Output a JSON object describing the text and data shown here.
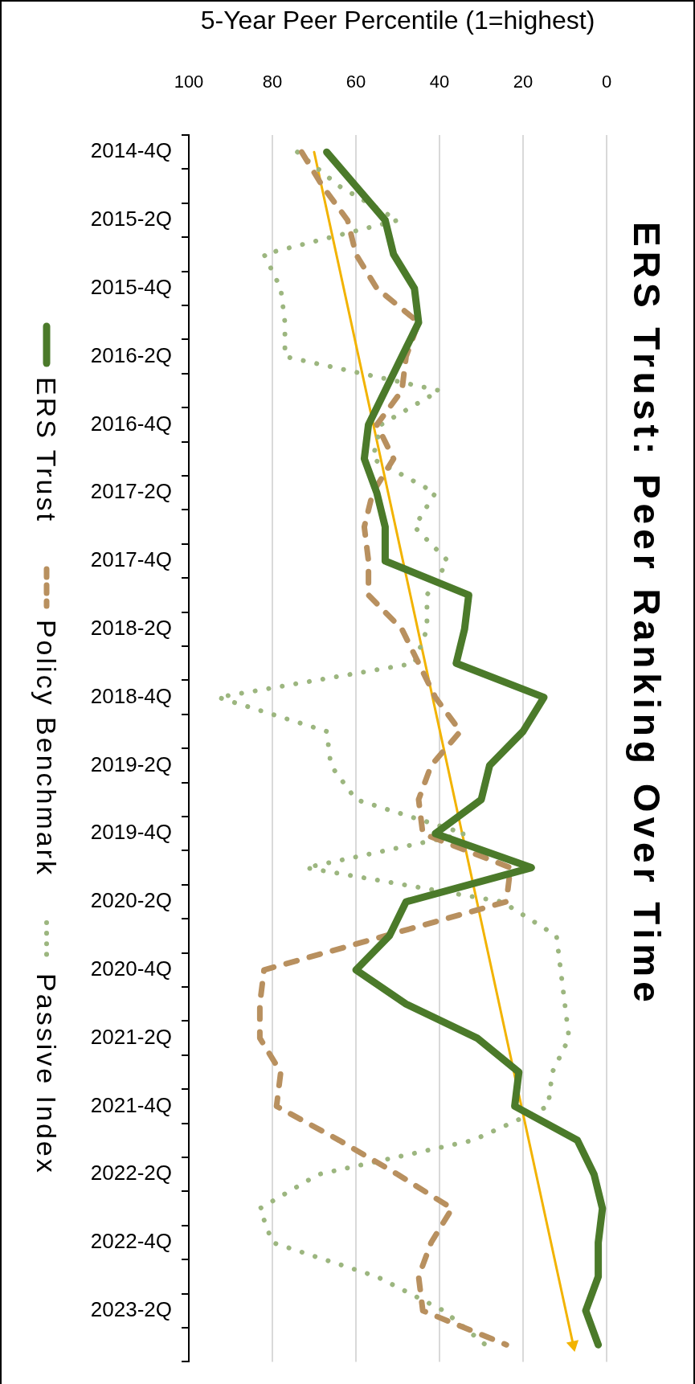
{
  "chart_data": {
    "type": "line",
    "orientation": "horizontal",
    "title": "ERS Trust: Peer Ranking Over Time",
    "xlabel": "5-Year Peer Percentile (1=highest)",
    "categories": [
      "2014-4Q",
      null,
      "2015-2Q",
      null,
      "2015-4Q",
      null,
      "2016-2Q",
      null,
      "2016-4Q",
      null,
      "2017-2Q",
      null,
      "2017-4Q",
      null,
      "2018-2Q",
      null,
      "2018-4Q",
      null,
      "2019-2Q",
      null,
      "2019-4Q",
      null,
      "2020-2Q",
      null,
      "2020-4Q",
      null,
      "2021-2Q",
      null,
      "2021-4Q",
      null,
      "2022-2Q",
      null,
      "2022-4Q",
      null,
      "2023-2Q",
      null
    ],
    "xlim": [
      100,
      0
    ],
    "xticks": [
      100,
      80,
      60,
      40,
      20,
      0
    ],
    "grid": "x",
    "legend": "left",
    "series": [
      {
        "name": "ERS Trust",
        "color": "#4b7a2a",
        "line_style": "solid",
        "values": [
          67,
          60,
          53,
          51,
          46,
          45,
          49,
          53,
          57,
          58,
          55,
          53,
          53,
          33,
          34,
          36,
          15,
          20,
          28,
          30,
          41,
          18,
          48,
          52,
          60,
          48,
          31,
          21,
          22,
          7,
          3,
          1,
          2,
          2,
          5,
          2
        ]
      },
      {
        "name": "Policy Benchmark",
        "color": "#b8905f",
        "line_style": "dashed",
        "values": [
          73,
          68,
          62,
          60,
          55,
          45,
          48,
          49,
          55,
          51,
          56,
          58,
          57,
          57,
          49,
          45,
          41,
          35,
          42,
          45,
          44,
          23,
          24,
          53,
          82,
          83,
          83,
          78,
          79,
          64,
          50,
          37,
          42,
          45,
          44,
          24
        ]
      },
      {
        "name": "Passive Index",
        "color": "#9cb67f",
        "line_style": "dotted",
        "values": [
          74,
          64,
          50,
          82,
          78,
          77,
          77,
          40,
          54,
          56,
          41,
          46,
          38,
          43,
          43,
          46,
          93,
          67,
          66,
          60,
          34,
          72,
          25,
          12,
          11,
          10,
          9,
          13,
          14,
          32,
          69,
          83,
          80,
          55,
          39,
          29
        ]
      },
      {
        "color": "#f2b300",
        "line_style": "solid",
        "marker": "triangle",
        "values": [
          70,
          null,
          null,
          null,
          null,
          null,
          null,
          null,
          null,
          null,
          null,
          null,
          null,
          null,
          null,
          null,
          null,
          null,
          null,
          null,
          null,
          null,
          null,
          null,
          null,
          null,
          null,
          null,
          null,
          null,
          null,
          null,
          null,
          null,
          null,
          8
        ]
      }
    ]
  }
}
